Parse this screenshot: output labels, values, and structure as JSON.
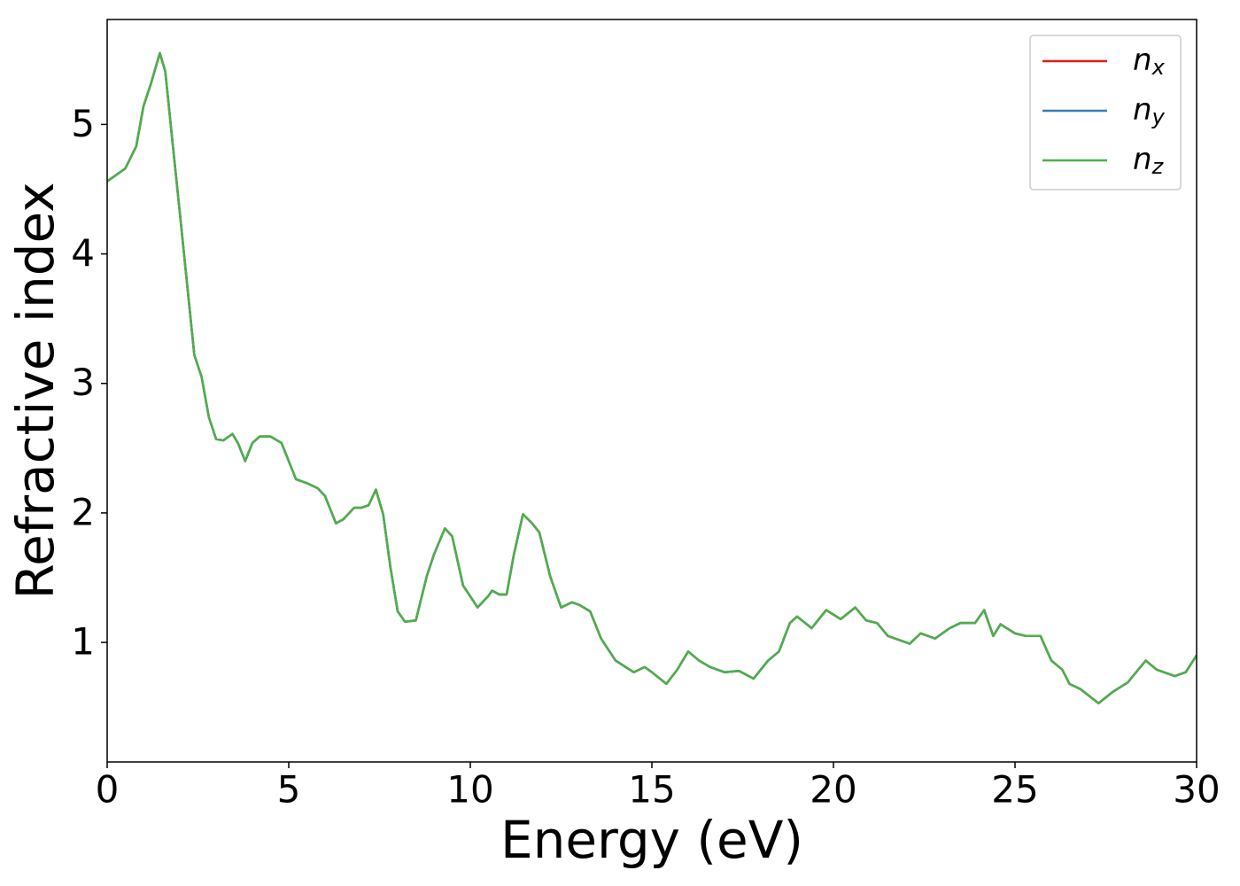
{
  "chart_data": {
    "type": "line",
    "xlabel": "Energy (eV)",
    "ylabel": "Refractive index",
    "x": [
      0,
      0.5,
      0.8,
      1.0,
      1.2,
      1.45,
      1.6,
      1.8,
      2.0,
      2.2,
      2.4,
      2.6,
      2.8,
      3.0,
      3.2,
      3.45,
      3.6,
      3.8,
      4.0,
      4.2,
      4.5,
      4.8,
      5.0,
      5.2,
      5.5,
      5.8,
      6.0,
      6.3,
      6.5,
      6.8,
      7.0,
      7.2,
      7.4,
      7.6,
      7.8,
      8.0,
      8.2,
      8.5,
      8.8,
      9.0,
      9.3,
      9.5,
      9.8,
      10.2,
      10.5,
      10.6,
      10.8,
      11.0,
      11.2,
      11.45,
      11.7,
      11.9,
      12.2,
      12.5,
      12.8,
      13.0,
      13.3,
      13.6,
      14.0,
      14.5,
      14.8,
      15.0,
      15.4,
      15.7,
      16.0,
      16.3,
      16.6,
      17.0,
      17.4,
      17.8,
      18.2,
      18.5,
      18.8,
      19.0,
      19.4,
      19.8,
      20.2,
      20.6,
      20.9,
      21.2,
      21.5,
      21.8,
      22.1,
      22.4,
      22.8,
      23.2,
      23.5,
      23.9,
      24.15,
      24.4,
      24.6,
      25.0,
      25.3,
      25.7,
      26.0,
      26.3,
      26.5,
      26.8,
      27.3,
      27.7,
      28.1,
      28.6,
      28.9,
      29.4,
      29.7,
      30.0
    ],
    "series": [
      {
        "name": "nx",
        "color": "#e41a1c",
        "values": [
          4.56,
          4.66,
          4.83,
          5.14,
          5.31,
          5.55,
          5.41,
          4.86,
          4.32,
          3.77,
          3.22,
          3.05,
          2.74,
          2.57,
          2.56,
          2.61,
          2.54,
          2.4,
          2.54,
          2.59,
          2.59,
          2.54,
          2.4,
          2.26,
          2.23,
          2.19,
          2.13,
          1.92,
          1.95,
          2.04,
          2.04,
          2.06,
          2.18,
          1.99,
          1.58,
          1.24,
          1.16,
          1.17,
          1.51,
          1.68,
          1.88,
          1.82,
          1.44,
          1.27,
          1.36,
          1.4,
          1.37,
          1.37,
          1.68,
          1.99,
          1.92,
          1.85,
          1.51,
          1.27,
          1.31,
          1.29,
          1.24,
          1.03,
          0.86,
          0.77,
          0.81,
          0.77,
          0.68,
          0.79,
          0.93,
          0.86,
          0.81,
          0.77,
          0.78,
          0.72,
          0.86,
          0.93,
          1.15,
          1.2,
          1.11,
          1.25,
          1.18,
          1.27,
          1.17,
          1.15,
          1.05,
          1.02,
          0.99,
          1.07,
          1.03,
          1.11,
          1.15,
          1.15,
          1.25,
          1.05,
          1.14,
          1.07,
          1.05,
          1.05,
          0.86,
          0.79,
          0.68,
          0.64,
          0.53,
          0.62,
          0.69,
          0.86,
          0.79,
          0.74,
          0.77,
          0.9
        ]
      },
      {
        "name": "ny",
        "color": "#377eb8",
        "values": [
          4.56,
          4.66,
          4.83,
          5.14,
          5.31,
          5.55,
          5.41,
          4.86,
          4.32,
          3.77,
          3.22,
          3.05,
          2.74,
          2.57,
          2.56,
          2.61,
          2.54,
          2.4,
          2.54,
          2.59,
          2.59,
          2.54,
          2.4,
          2.26,
          2.23,
          2.19,
          2.13,
          1.92,
          1.95,
          2.04,
          2.04,
          2.06,
          2.18,
          1.99,
          1.58,
          1.24,
          1.16,
          1.17,
          1.51,
          1.68,
          1.88,
          1.82,
          1.44,
          1.27,
          1.36,
          1.4,
          1.37,
          1.37,
          1.68,
          1.99,
          1.92,
          1.85,
          1.51,
          1.27,
          1.31,
          1.29,
          1.24,
          1.03,
          0.86,
          0.77,
          0.81,
          0.77,
          0.68,
          0.79,
          0.93,
          0.86,
          0.81,
          0.77,
          0.78,
          0.72,
          0.86,
          0.93,
          1.15,
          1.2,
          1.11,
          1.25,
          1.18,
          1.27,
          1.17,
          1.15,
          1.05,
          1.02,
          0.99,
          1.07,
          1.03,
          1.11,
          1.15,
          1.15,
          1.25,
          1.05,
          1.14,
          1.07,
          1.05,
          1.05,
          0.86,
          0.79,
          0.68,
          0.64,
          0.53,
          0.62,
          0.69,
          0.86,
          0.79,
          0.74,
          0.77,
          0.9
        ]
      },
      {
        "name": "nz",
        "color": "#4daf4a",
        "values": [
          4.56,
          4.66,
          4.83,
          5.14,
          5.31,
          5.55,
          5.41,
          4.86,
          4.32,
          3.77,
          3.22,
          3.05,
          2.74,
          2.57,
          2.56,
          2.61,
          2.54,
          2.4,
          2.54,
          2.59,
          2.59,
          2.54,
          2.4,
          2.26,
          2.23,
          2.19,
          2.13,
          1.92,
          1.95,
          2.04,
          2.04,
          2.06,
          2.18,
          1.99,
          1.58,
          1.24,
          1.16,
          1.17,
          1.51,
          1.68,
          1.88,
          1.82,
          1.44,
          1.27,
          1.36,
          1.4,
          1.37,
          1.37,
          1.68,
          1.99,
          1.92,
          1.85,
          1.51,
          1.27,
          1.31,
          1.29,
          1.24,
          1.03,
          0.86,
          0.77,
          0.81,
          0.77,
          0.68,
          0.79,
          0.93,
          0.86,
          0.81,
          0.77,
          0.78,
          0.72,
          0.86,
          0.93,
          1.15,
          1.2,
          1.11,
          1.25,
          1.18,
          1.27,
          1.17,
          1.15,
          1.05,
          1.02,
          0.99,
          1.07,
          1.03,
          1.11,
          1.15,
          1.15,
          1.25,
          1.05,
          1.14,
          1.07,
          1.05,
          1.05,
          0.86,
          0.79,
          0.68,
          0.64,
          0.53,
          0.62,
          0.69,
          0.86,
          0.79,
          0.74,
          0.77,
          0.9
        ]
      }
    ],
    "xlim": [
      0,
      30
    ],
    "xticks": [
      0,
      5,
      10,
      15,
      20,
      25,
      30
    ],
    "ylim": [
      0.077,
      5.81
    ],
    "yticks": [
      1,
      2,
      3,
      4,
      5
    ],
    "grid": false,
    "legend": "upper right"
  }
}
